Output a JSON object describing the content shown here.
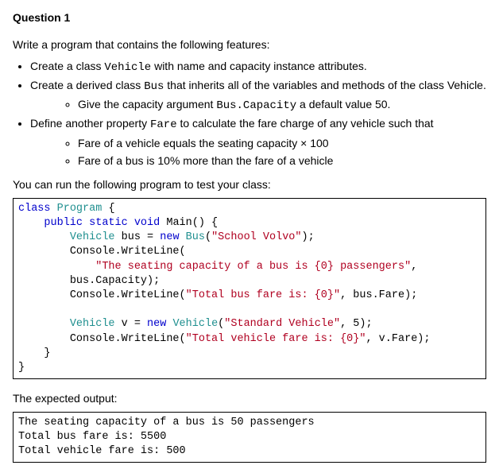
{
  "heading": "Question 1",
  "intro": "Write a program that contains the following features:",
  "bullets": {
    "b1_pre": "Create a class ",
    "b1_code": "Vehicle",
    "b1_post": " with name and capacity instance attributes.",
    "b2_pre": "Create a derived class ",
    "b2_code": "Bus",
    "b2_post": " that inherits all of the variables and methods of the class Vehicle.",
    "b2_sub1_pre": "Give the capacity argument ",
    "b2_sub1_code": "Bus.Capacity",
    "b2_sub1_post": " a default value 50.",
    "b3_pre": "Define another property ",
    "b3_code": "Fare",
    "b3_post": " to calculate the fare charge of any vehicle such that",
    "b3_sub1": "Fare of a vehicle equals the seating capacity × 100",
    "b3_sub2": "Fare of a bus is 10% more than the fare of a vehicle"
  },
  "test_intro": "You can run the following program to test your class:",
  "code": {
    "kw_class": "class",
    "type_program": "Program",
    "brace_open": " {",
    "indent1": "    ",
    "kw_public": "public",
    "kw_static": " static",
    "kw_void": " void",
    "main_sig": " Main() {",
    "indent2": "        ",
    "type_vehicle": "Vehicle",
    "var_bus": " bus = ",
    "kw_new": "new",
    "type_bus": " Bus",
    "call_bus_open": "(",
    "str_school": "\"School Volvo\"",
    "call_bus_close": ");",
    "console_wl_open": "Console.WriteLine(",
    "indent3": "            ",
    "str_seating": "\"The seating capacity of a bus is {0} passengers\"",
    "comma": ",",
    "bus_capacity_line": "bus.Capacity);",
    "console_wl": "Console.WriteLine(",
    "str_totalbus": "\"Total bus fare is: {0}\"",
    "bus_fare_tail": ", bus.Fare);",
    "blank": "",
    "var_v": " v = ",
    "type_vehicle2": " Vehicle",
    "call_v_open": "(",
    "str_stdveh": "\"Standard Vehicle\"",
    "call_v_close": ", 5);",
    "str_totalveh": "\"Total vehicle fare is: {0}\"",
    "v_fare_tail": ", v.Fare);",
    "indent1_close": "    }",
    "brace_close": "}"
  },
  "output_intro": "The expected output:",
  "output": {
    "line1": "The seating capacity of a bus is 50 passengers",
    "line2": "Total bus fare is: 5500",
    "line3": "Total vehicle fare is: 500"
  },
  "colors": {
    "text": "#000000",
    "background": "#ffffff",
    "border": "#000000",
    "keyword": "#0000cc",
    "type": "#1f8f8f",
    "string": "#b00020"
  }
}
